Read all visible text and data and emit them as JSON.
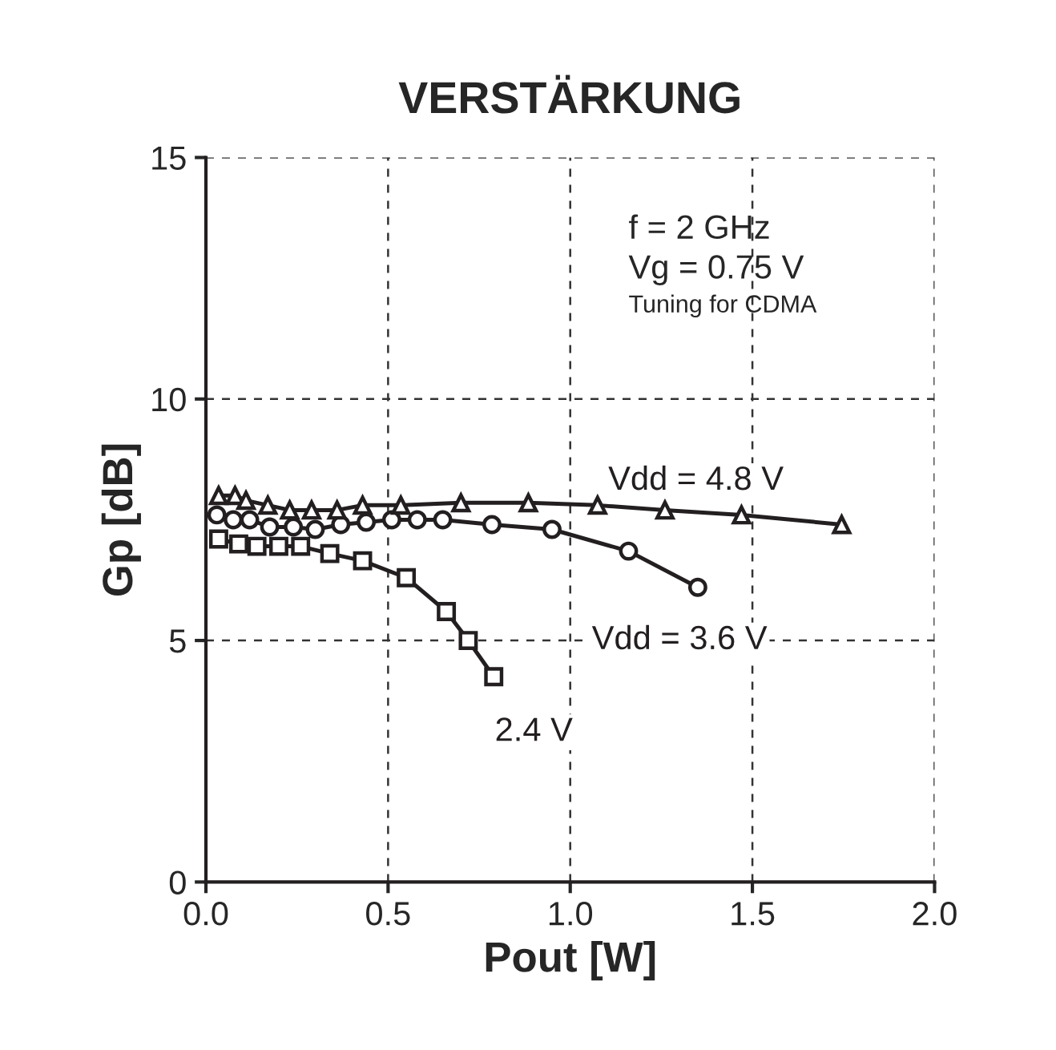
{
  "chart_data": {
    "type": "line",
    "title": "VERSTÄRKUNG",
    "xlabel": "Pout [W]",
    "ylabel": "Gp [dB]",
    "xlim": [
      0,
      2.0
    ],
    "xticks": [
      {
        "value": 0,
        "label": "0.0"
      },
      0.5,
      {
        "value": 1,
        "label": "1.0"
      },
      1.5,
      {
        "value": 2,
        "label": "2.0"
      }
    ],
    "ylim": [
      0,
      15
    ],
    "yticks": [
      0,
      5,
      10,
      15
    ],
    "grid": true,
    "annotations": [
      "f = 2 GHz",
      "Vg = 0.75 V",
      "Tuning for CDMA"
    ],
    "series": [
      {
        "name": "Vdd = 4.8 V",
        "color": "#231f20",
        "marker": "triangle",
        "x": [
          0.035,
          0.08,
          0.11,
          0.17,
          0.23,
          0.29,
          0.36,
          0.43,
          0.535,
          0.7,
          0.885,
          1.075,
          1.26,
          1.47,
          1.745
        ],
        "values": [
          8.0,
          8.0,
          7.9,
          7.8,
          7.7,
          7.7,
          7.7,
          7.8,
          7.8,
          7.85,
          7.85,
          7.8,
          7.7,
          7.6,
          7.4
        ]
      },
      {
        "name": "Vdd = 3.6 V",
        "color": "#231f20",
        "marker": "circle",
        "x": [
          0.03,
          0.075,
          0.12,
          0.175,
          0.24,
          0.3,
          0.37,
          0.44,
          0.51,
          0.58,
          0.65,
          0.785,
          0.95,
          1.16,
          1.35
        ],
        "values": [
          7.6,
          7.5,
          7.5,
          7.35,
          7.35,
          7.3,
          7.4,
          7.45,
          7.5,
          7.5,
          7.5,
          7.4,
          7.3,
          6.85,
          6.1
        ]
      },
      {
        "name": "2.4 V",
        "color": "#231f20",
        "marker": "square",
        "x": [
          0.035,
          0.09,
          0.14,
          0.2,
          0.26,
          0.34,
          0.43,
          0.55,
          0.66,
          0.72,
          0.79
        ],
        "values": [
          7.1,
          7.0,
          6.95,
          6.95,
          6.95,
          6.8,
          6.65,
          6.3,
          5.6,
          5.0,
          4.25
        ]
      }
    ]
  }
}
